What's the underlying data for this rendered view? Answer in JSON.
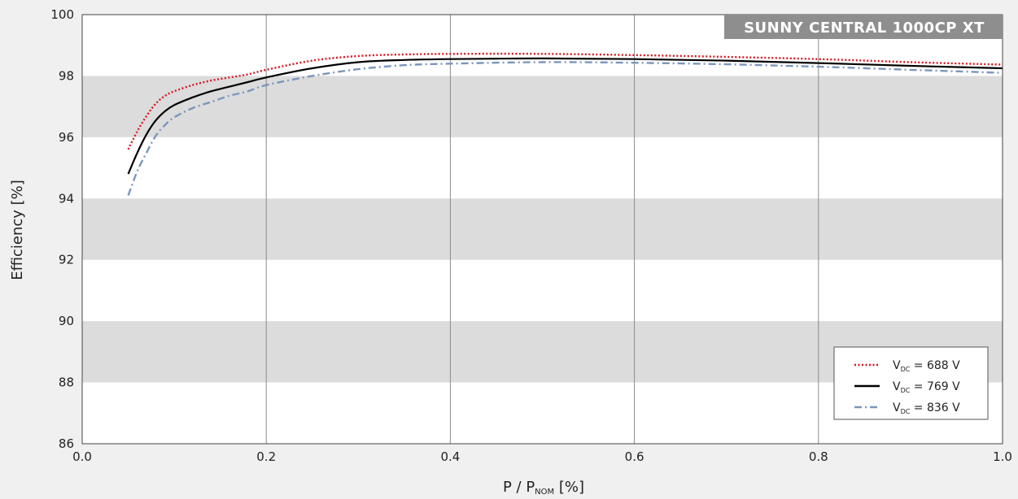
{
  "chart_data": {
    "type": "line",
    "title": "SUNNY CENTRAL 1000CP XT",
    "xlabel": {
      "main": "P / P",
      "sub": "NOM",
      "unit": " [%]"
    },
    "ylabel": "Efficiency [%]",
    "xlim": [
      0.0,
      1.0
    ],
    "ylim": [
      86,
      100
    ],
    "x_ticks": [
      "0.0",
      "0.2",
      "0.4",
      "0.6",
      "0.8",
      "1.0"
    ],
    "y_ticks": [
      "86",
      "88",
      "90",
      "92",
      "94",
      "96",
      "98",
      "100"
    ],
    "grid": {
      "vertical": true,
      "horizontal_bands": true
    },
    "legend_position": "bottom-right",
    "series": [
      {
        "legend": {
          "prefix": "V",
          "sub": "DC",
          "suffix": " = 688 V"
        },
        "color": "#d7141e",
        "style": "dotted",
        "x": [
          0.05,
          0.06,
          0.07,
          0.08,
          0.09,
          0.1,
          0.12,
          0.14,
          0.16,
          0.18,
          0.2,
          0.25,
          0.3,
          0.35,
          0.4,
          0.5,
          0.6,
          0.7,
          0.8,
          0.9,
          1.0
        ],
        "y": [
          95.6,
          96.2,
          96.7,
          97.1,
          97.35,
          97.5,
          97.7,
          97.85,
          97.95,
          98.05,
          98.2,
          98.5,
          98.65,
          98.7,
          98.72,
          98.72,
          98.68,
          98.62,
          98.55,
          98.45,
          98.37
        ]
      },
      {
        "legend": {
          "prefix": "V",
          "sub": "DC",
          "suffix": " = 769 V"
        },
        "color": "#000000",
        "style": "solid",
        "x": [
          0.05,
          0.06,
          0.07,
          0.08,
          0.09,
          0.1,
          0.12,
          0.14,
          0.16,
          0.18,
          0.2,
          0.25,
          0.3,
          0.35,
          0.4,
          0.5,
          0.6,
          0.7,
          0.8,
          0.9,
          1.0
        ],
        "y": [
          94.8,
          95.5,
          96.1,
          96.55,
          96.85,
          97.05,
          97.3,
          97.5,
          97.65,
          97.8,
          97.95,
          98.25,
          98.45,
          98.52,
          98.55,
          98.57,
          98.55,
          98.5,
          98.42,
          98.33,
          98.25
        ]
      },
      {
        "legend": {
          "prefix": "V",
          "sub": "DC",
          "suffix": " = 836 V"
        },
        "color": "#7b96bd",
        "style": "dashdot",
        "x": [
          0.05,
          0.06,
          0.07,
          0.08,
          0.09,
          0.1,
          0.12,
          0.14,
          0.16,
          0.18,
          0.2,
          0.25,
          0.3,
          0.35,
          0.4,
          0.5,
          0.6,
          0.7,
          0.8,
          0.9,
          1.0
        ],
        "y": [
          94.1,
          94.9,
          95.5,
          96.05,
          96.4,
          96.65,
          96.95,
          97.15,
          97.35,
          97.5,
          97.7,
          98.0,
          98.22,
          98.35,
          98.4,
          98.45,
          98.43,
          98.38,
          98.3,
          98.2,
          98.1
        ]
      }
    ]
  }
}
